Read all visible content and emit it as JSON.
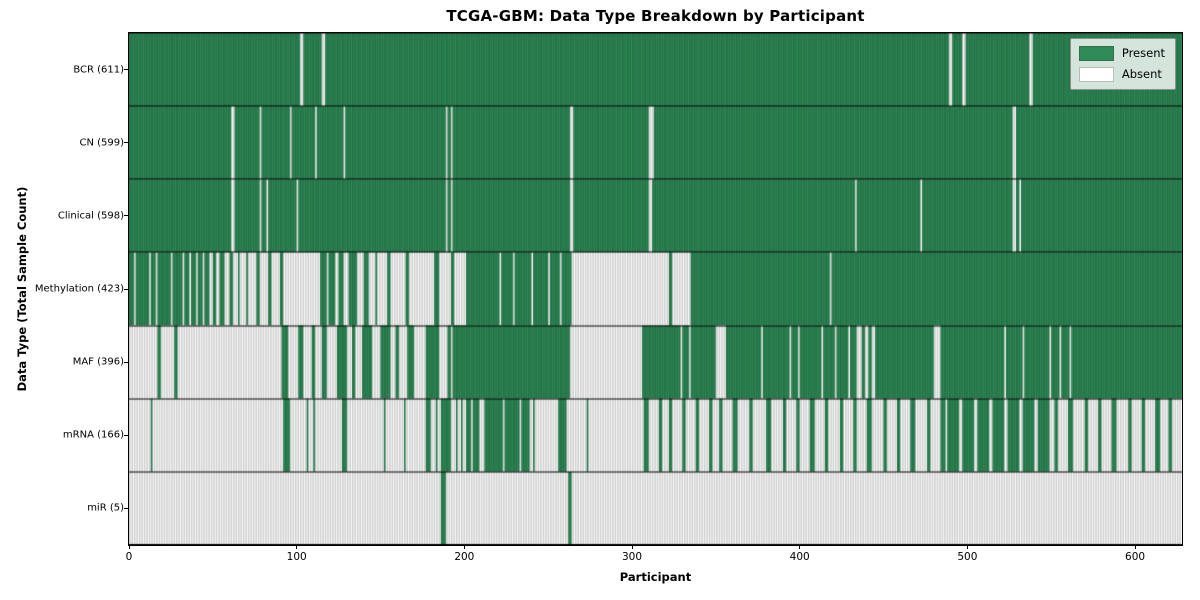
{
  "chart_data": {
    "type": "heatmap",
    "title": "TCGA-GBM: Data Type Breakdown by Participant",
    "xlabel": "Participant",
    "ylabel": "Data Type (Total Sample Count)",
    "x_ticks": [
      0,
      100,
      200,
      300,
      400,
      500,
      600
    ],
    "x_range": [
      0,
      628
    ],
    "total_participants": 628,
    "grid": false,
    "legend_position": "upper right",
    "legend": [
      {
        "label": "Present",
        "color": "#2e8b57"
      },
      {
        "label": "Absent",
        "color": "#ffffff"
      }
    ],
    "colors": {
      "present": "#2e8b57",
      "present_edge": "rgba(16,62,38,0.55)",
      "absent": "#ffffff",
      "absent_edge": "rgba(125,125,125,0.60)",
      "separator": "#000000",
      "border": "#000000"
    },
    "rows": [
      {
        "label": "BCR (611)",
        "name": "BCR",
        "count": 611,
        "mode": "present_except",
        "absent": [
          [
            102,
            104
          ],
          [
            115,
            117
          ],
          [
            489,
            491
          ],
          [
            497,
            499
          ],
          [
            537,
            539
          ]
        ]
      },
      {
        "label": "CN (599)",
        "name": "CN",
        "count": 599,
        "mode": "present_except",
        "absent": [
          [
            61,
            63
          ],
          [
            78,
            79
          ],
          [
            96,
            97
          ],
          [
            111,
            112
          ],
          [
            128,
            129
          ],
          [
            189,
            190
          ],
          [
            192,
            193
          ],
          [
            263,
            265
          ],
          [
            310,
            313
          ],
          [
            527,
            529
          ]
        ]
      },
      {
        "label": "Clinical (598)",
        "name": "Clinical",
        "count": 598,
        "mode": "present_except",
        "absent": [
          [
            61,
            63
          ],
          [
            78,
            79
          ],
          [
            82,
            83
          ],
          [
            100,
            101
          ],
          [
            189,
            190
          ],
          [
            192,
            193
          ],
          [
            263,
            265
          ],
          [
            310,
            312
          ],
          [
            433,
            434
          ],
          [
            472,
            473
          ],
          [
            527,
            529
          ],
          [
            531,
            532
          ]
        ]
      },
      {
        "label": "Methylation (423)",
        "name": "Methylation",
        "count": 423,
        "mode": "present_except",
        "absent": [
          [
            3,
            4
          ],
          [
            12,
            13
          ],
          [
            16,
            17
          ],
          [
            25,
            26
          ],
          [
            32,
            33
          ],
          [
            36,
            37
          ],
          [
            40,
            41
          ],
          [
            44,
            45
          ],
          [
            48,
            50
          ],
          [
            52,
            54
          ],
          [
            57,
            60
          ],
          [
            62,
            65
          ],
          [
            66,
            70
          ],
          [
            71,
            76
          ],
          [
            78,
            83
          ],
          [
            85,
            90
          ],
          [
            92,
            114
          ],
          [
            118,
            119
          ],
          [
            123,
            125
          ],
          [
            128,
            131
          ],
          [
            136,
            140
          ],
          [
            143,
            147
          ],
          [
            148,
            154
          ],
          [
            156,
            165
          ],
          [
            167,
            182
          ],
          [
            185,
            192
          ],
          [
            194,
            201
          ],
          [
            221,
            222
          ],
          [
            229,
            230
          ],
          [
            240,
            241
          ],
          [
            250,
            251
          ],
          [
            257,
            258
          ],
          [
            264,
            322
          ],
          [
            324,
            335
          ],
          [
            418,
            419
          ]
        ]
      },
      {
        "label": "MAF (396)",
        "name": "MAF",
        "count": 396,
        "mode": "absent_except",
        "present": [
          [
            17,
            19
          ],
          [
            27,
            29
          ],
          [
            91,
            95
          ],
          [
            101,
            104
          ],
          [
            109,
            111
          ],
          [
            115,
            118
          ],
          [
            124,
            130
          ],
          [
            133,
            135
          ],
          [
            139,
            145
          ],
          [
            150,
            156
          ],
          [
            159,
            161
          ],
          [
            166,
            170
          ],
          [
            177,
            185
          ],
          [
            190,
            192
          ],
          [
            193,
            263
          ],
          [
            306,
            329
          ],
          [
            330,
            334
          ],
          [
            335,
            350
          ],
          [
            356,
            377
          ],
          [
            378,
            394
          ],
          [
            395,
            399
          ],
          [
            400,
            413
          ],
          [
            414,
            421
          ],
          [
            422,
            429
          ],
          [
            430,
            434
          ],
          [
            437,
            439
          ],
          [
            441,
            443
          ],
          [
            445,
            480
          ],
          [
            484,
            522
          ],
          [
            523,
            533
          ],
          [
            534,
            549
          ],
          [
            550,
            555
          ],
          [
            556,
            561
          ],
          [
            562,
            628
          ]
        ]
      },
      {
        "label": "mRNA (166)",
        "name": "mRNA",
        "count": 166,
        "mode": "absent_except",
        "present": [
          [
            13,
            14
          ],
          [
            92,
            96
          ],
          [
            106,
            107
          ],
          [
            110,
            111
          ],
          [
            127,
            130
          ],
          [
            152,
            153
          ],
          [
            164,
            165
          ],
          [
            177,
            180
          ],
          [
            183,
            184
          ],
          [
            186,
            192
          ],
          [
            195,
            196
          ],
          [
            198,
            199
          ],
          [
            201,
            204
          ],
          [
            205,
            209
          ],
          [
            212,
            223
          ],
          [
            224,
            233
          ],
          [
            234,
            239
          ],
          [
            241,
            242
          ],
          [
            256,
            261
          ],
          [
            273,
            274
          ],
          [
            307,
            310
          ],
          [
            316,
            318
          ],
          [
            322,
            324
          ],
          [
            330,
            332
          ],
          [
            338,
            340
          ],
          [
            346,
            348
          ],
          [
            352,
            354
          ],
          [
            360,
            363
          ],
          [
            370,
            372
          ],
          [
            380,
            383
          ],
          [
            390,
            392
          ],
          [
            398,
            400
          ],
          [
            406,
            409
          ],
          [
            415,
            417
          ],
          [
            424,
            426
          ],
          [
            432,
            434
          ],
          [
            440,
            443
          ],
          [
            450,
            452
          ],
          [
            458,
            460
          ],
          [
            466,
            469
          ],
          [
            476,
            478
          ],
          [
            484,
            487
          ],
          [
            488,
            495
          ],
          [
            497,
            504
          ],
          [
            506,
            513
          ],
          [
            515,
            522
          ],
          [
            524,
            531
          ],
          [
            533,
            540
          ],
          [
            542,
            549
          ],
          [
            552,
            554
          ],
          [
            560,
            563
          ],
          [
            570,
            572
          ],
          [
            578,
            580
          ],
          [
            586,
            589
          ],
          [
            596,
            598
          ],
          [
            604,
            606
          ],
          [
            612,
            615
          ],
          [
            620,
            622
          ]
        ]
      },
      {
        "label": "miR (5)",
        "name": "miR",
        "count": 5,
        "mode": "absent_except",
        "present": [
          [
            186,
            189
          ],
          [
            262,
            264
          ]
        ]
      }
    ]
  }
}
